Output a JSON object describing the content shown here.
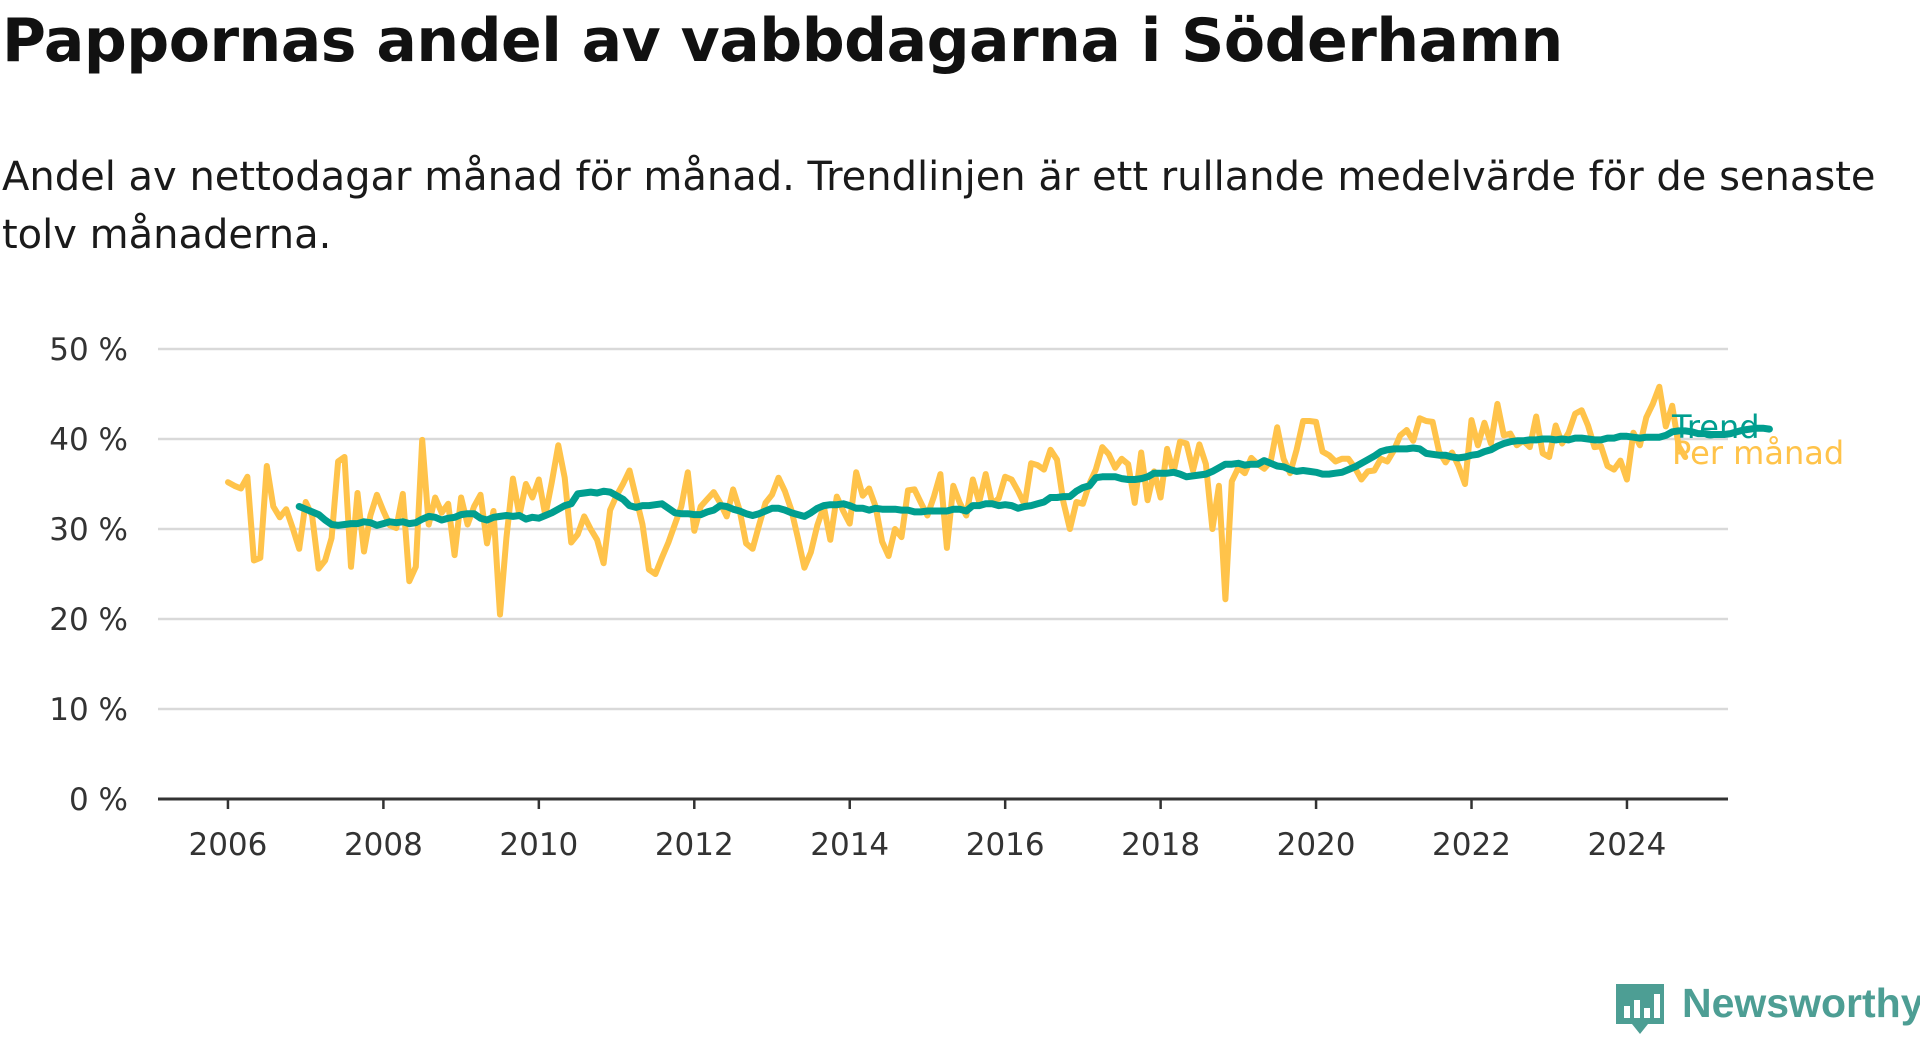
{
  "title": "Pappornas andel av vabbdagarna i Söderhamn",
  "subtitle": "Andel av nettodagar månad för månad. Trendlinjen är ett rullande medelvärde för de senaste tolv månaderna.",
  "brand": {
    "name": "Newsworthy",
    "color": "#4d9e94"
  },
  "colors": {
    "monthly": "#FFC34A",
    "trend": "#009E8F",
    "grid": "#d9d9d9",
    "axis": "#333333"
  },
  "chart_data": {
    "type": "line",
    "title": "Pappornas andel av vabbdagarna i Söderhamn",
    "xlabel": "",
    "ylabel": "",
    "xlim": [
      2005.1,
      2025.3
    ],
    "ylim": [
      0,
      50
    ],
    "y_ticks": [
      {
        "value": 0,
        "label": "0 %"
      },
      {
        "value": 10,
        "label": "10 %"
      },
      {
        "value": 20,
        "label": "20 %"
      },
      {
        "value": 30,
        "label": "30 %"
      },
      {
        "value": 40,
        "label": "40 %"
      },
      {
        "value": 50,
        "label": "50 %"
      }
    ],
    "x_ticks": [
      {
        "value": 2006,
        "label": "2006"
      },
      {
        "value": 2008,
        "label": "2008"
      },
      {
        "value": 2010,
        "label": "2010"
      },
      {
        "value": 2012,
        "label": "2012"
      },
      {
        "value": 2014,
        "label": "2014"
      },
      {
        "value": 2016,
        "label": "2016"
      },
      {
        "value": 2018,
        "label": "2018"
      },
      {
        "value": 2020,
        "label": "2020"
      },
      {
        "value": 2022,
        "label": "2022"
      },
      {
        "value": 2024,
        "label": "2024"
      }
    ],
    "grid": true,
    "series": [
      {
        "name": "Per månad",
        "color": "#FFC34A",
        "x_start": 2006.0,
        "x_step": 0.08333,
        "values": [
          35.2,
          34.8,
          34.5,
          35.8,
          26.5,
          26.8,
          37.0,
          32.5,
          31.3,
          32.2,
          30.1,
          27.8,
          33.0,
          31.5,
          25.6,
          26.5,
          29.0,
          37.5,
          38.0,
          25.8,
          34.0,
          27.5,
          31.5,
          33.8,
          32.0,
          30.4,
          30.1,
          33.9,
          24.2,
          25.8,
          39.9,
          30.5,
          33.5,
          31.8,
          32.8,
          27.1,
          33.5,
          30.5,
          32.5,
          33.8,
          28.4,
          32.0,
          20.5,
          29.0,
          35.6,
          31.5,
          35.0,
          33.5,
          35.5,
          31.5,
          35.2,
          39.3,
          35.7,
          28.5,
          29.4,
          31.4,
          30.0,
          28.8,
          26.2,
          32.1,
          33.7,
          35.0,
          36.5,
          33.5,
          30.5,
          25.5,
          25.0,
          26.8,
          28.5,
          30.5,
          32.5,
          36.3,
          29.8,
          32.5,
          33.3,
          34.1,
          32.9,
          31.4,
          34.4,
          32.1,
          28.4,
          27.8,
          30.4,
          32.9,
          33.8,
          35.7,
          34.2,
          32.1,
          29.0,
          25.7,
          27.4,
          30.4,
          32.5,
          28.8,
          33.6,
          32.0,
          30.6,
          36.3,
          33.7,
          34.5,
          32.5,
          28.6,
          27.0,
          30.0,
          29.1,
          34.3,
          34.4,
          32.9,
          31.5,
          33.6,
          36.1,
          27.9,
          34.8,
          32.9,
          31.5,
          35.5,
          33.0,
          36.1,
          32.8,
          33.4,
          35.8,
          35.5,
          34.2,
          32.7,
          37.3,
          37.1,
          36.6,
          38.8,
          37.7,
          33.0,
          30.0,
          33.0,
          32.8,
          35.0,
          36.6,
          39.1,
          38.3,
          36.8,
          37.8,
          37.2,
          32.9,
          38.5,
          33.2,
          36.4,
          33.5,
          38.9,
          36.3,
          39.7,
          39.5,
          36.5,
          39.4,
          37.2,
          30.0,
          34.8,
          22.2,
          35.3,
          36.8,
          36.2,
          37.9,
          37.2,
          36.7,
          37.5,
          41.3,
          37.8,
          36.2,
          38.8,
          42.0,
          42.0,
          41.9,
          38.6,
          38.2,
          37.5,
          37.8,
          37.8,
          36.8,
          35.5,
          36.4,
          36.5,
          37.8,
          37.5,
          38.7,
          40.4,
          41.0,
          39.8,
          42.3,
          42.0,
          41.9,
          38.6,
          37.4,
          38.5,
          37.0,
          35.0,
          42.1,
          39.3,
          41.8,
          39.5,
          43.9,
          40.4,
          40.6,
          39.3,
          39.8,
          39.1,
          42.5,
          38.4,
          38.0,
          41.5,
          39.5,
          40.7,
          42.8,
          43.2,
          41.5,
          39.1,
          39.2,
          37.0,
          36.6,
          37.6,
          35.5,
          40.7,
          39.3,
          42.4,
          43.9,
          45.8,
          41.4,
          43.7,
          39.2,
          38.0
        ],
        "label": "Per månad"
      },
      {
        "name": "Trend",
        "color": "#009E8F",
        "x_start": 2006.917,
        "x_step": 0.08333,
        "values": [
          32.5,
          32.2,
          31.9,
          31.6,
          31.0,
          30.5,
          30.4,
          30.5,
          30.6,
          30.6,
          30.8,
          30.7,
          30.4,
          30.6,
          30.8,
          30.7,
          30.8,
          30.6,
          30.7,
          31.1,
          31.4,
          31.3,
          31.0,
          31.2,
          31.3,
          31.6,
          31.7,
          31.7,
          31.2,
          31.0,
          31.3,
          31.4,
          31.5,
          31.4,
          31.5,
          31.1,
          31.3,
          31.2,
          31.5,
          31.8,
          32.2,
          32.6,
          32.8,
          33.9,
          34.0,
          34.1,
          34.0,
          34.2,
          34.1,
          33.7,
          33.3,
          32.6,
          32.4,
          32.6,
          32.6,
          32.7,
          32.8,
          32.3,
          31.8,
          31.7,
          31.7,
          31.6,
          31.6,
          31.9,
          32.1,
          32.6,
          32.5,
          32.2,
          32.0,
          31.7,
          31.5,
          31.7,
          32.0,
          32.3,
          32.3,
          32.1,
          31.8,
          31.6,
          31.4,
          31.8,
          32.3,
          32.6,
          32.7,
          32.7,
          32.8,
          32.6,
          32.3,
          32.3,
          32.1,
          32.3,
          32.2,
          32.2,
          32.2,
          32.1,
          32.1,
          31.9,
          31.9,
          32.0,
          32.0,
          32.0,
          32.0,
          32.2,
          32.2,
          32.0,
          32.6,
          32.6,
          32.8,
          32.8,
          32.6,
          32.7,
          32.6,
          32.3,
          32.5,
          32.6,
          32.8,
          33.0,
          33.5,
          33.5,
          33.6,
          33.6,
          34.2,
          34.6,
          34.8,
          35.7,
          35.8,
          35.8,
          35.8,
          35.6,
          35.5,
          35.5,
          35.6,
          35.8,
          36.2,
          36.2,
          36.2,
          36.3,
          36.1,
          35.8,
          35.9,
          36.0,
          36.1,
          36.4,
          36.8,
          37.2,
          37.2,
          37.3,
          37.1,
          37.2,
          37.2,
          37.6,
          37.3,
          37.0,
          36.9,
          36.6,
          36.4,
          36.5,
          36.4,
          36.3,
          36.1,
          36.1,
          36.2,
          36.3,
          36.6,
          36.9,
          37.3,
          37.7,
          38.1,
          38.6,
          38.8,
          38.9,
          38.9,
          38.9,
          39.0,
          38.9,
          38.4,
          38.3,
          38.2,
          38.2,
          38.0,
          37.9,
          38.0,
          38.2,
          38.3,
          38.6,
          38.8,
          39.2,
          39.5,
          39.7,
          39.8,
          39.8,
          39.9,
          39.9,
          40.0,
          40.0,
          39.9,
          40.0,
          39.9,
          40.1,
          40.1,
          40.0,
          39.9,
          39.9,
          40.1,
          40.1,
          40.3,
          40.3,
          40.2,
          40.1,
          40.2,
          40.2,
          40.2,
          40.4,
          40.8,
          40.9,
          40.9,
          40.8,
          40.6,
          40.6,
          40.5,
          40.5,
          40.5,
          40.6,
          40.8,
          41.0,
          41.1,
          41.2,
          41.2,
          41.1
        ],
        "label": "Trend"
      }
    ]
  }
}
